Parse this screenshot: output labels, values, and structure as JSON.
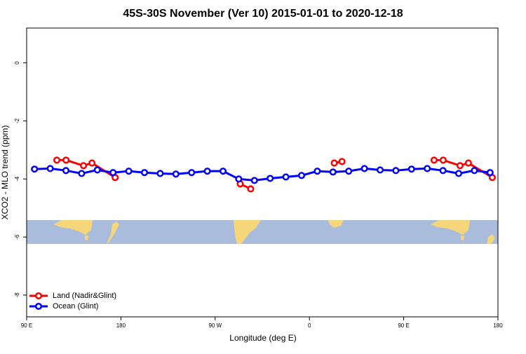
{
  "chart_data": {
    "type": "line",
    "title": "45S-30S November (Ver 10)   2015-01-01 to 2020-12-18",
    "x_label": "Longitude (deg E)",
    "y_label": "XCO2 - MLO trend (ppm)",
    "xlim": [
      90,
      540
    ],
    "xticks": [
      {
        "value": 90,
        "label": "90 E"
      },
      180,
      {
        "value": 270,
        "label": "90 W"
      },
      {
        "value": 360,
        "label": "0"
      },
      {
        "value": 450,
        "label": "90 E"
      },
      {
        "value": 540,
        "label": "180"
      }
    ],
    "ylim": [
      -8.75,
      1.2
    ],
    "yticks": [
      0,
      -2,
      -4,
      -6,
      -8
    ],
    "legend": "bottom-left",
    "series": [
      {
        "name": "Land (Nadir&Glint)",
        "color": "#ff0000",
        "x": [
          118.8,
          127.6,
          144.3,
          152.4,
          174.5,
          225,
          293.9,
          303.9,
          345,
          383.7,
          391.1,
          435,
          479,
          487.7,
          503.8,
          511.8,
          534.6
        ],
        "values": [
          -3.35,
          -3.35,
          -3.54,
          -3.45,
          -3.95,
          null,
          -4.17,
          -4.34,
          null,
          -3.45,
          -3.4,
          null,
          -3.35,
          -3.35,
          -3.54,
          -3.45,
          -3.95
        ]
      },
      {
        "name": "Ocean (Glint)",
        "color": "#0000ff",
        "x": [
          97.5,
          112.5,
          127.5,
          142.5,
          157.5,
          172.5,
          187.5,
          202.5,
          217.5,
          232.5,
          247.5,
          262.5,
          277.5,
          292.5,
          307.5,
          322.5,
          337.5,
          352.5,
          367.5,
          382.5,
          397.5,
          412.5,
          427.5,
          442.5,
          457.5,
          472.5,
          487.5,
          502.5,
          517.5,
          532.5
        ],
        "values": [
          -3.66,
          -3.64,
          -3.71,
          -3.81,
          -3.69,
          -3.78,
          -3.73,
          -3.78,
          -3.81,
          -3.83,
          -3.78,
          -3.73,
          -3.73,
          -4.0,
          -4.05,
          -3.98,
          -3.93,
          -3.88,
          -3.73,
          -3.76,
          -3.73,
          -3.64,
          -3.69,
          -3.71,
          -3.66,
          -3.64,
          -3.71,
          -3.81,
          -3.71,
          -3.78
        ]
      }
    ]
  }
}
